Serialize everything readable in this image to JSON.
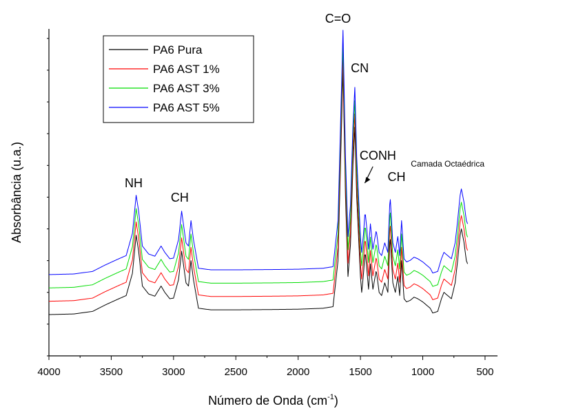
{
  "chart_data": {
    "type": "line",
    "title": "",
    "xlabel": "Número de Onda (cm",
    "xlabel_sup": "-1",
    "xlabel_suffix": ")",
    "ylabel": "Absorbância (u.a.)",
    "xlim": [
      4000,
      400
    ],
    "x_reversed": true,
    "y_ticks_labeled": false,
    "x_ticks": [
      4000,
      3500,
      3000,
      2500,
      2000,
      1500,
      1000,
      500
    ],
    "x_tick_labels": [
      "4000",
      "3500",
      "3000",
      "2500",
      "2000",
      "1500",
      "1000",
      "500"
    ],
    "grid": false,
    "legend_position": "top-left",
    "series": [
      {
        "name": "PA6 Pura",
        "color": "#000000",
        "offset": 0.0
      },
      {
        "name": "PA6 AST 1%",
        "color": "#ff0000",
        "offset": 0.042
      },
      {
        "name": "PA6 AST 3%",
        "color": "#00dd00",
        "offset": 0.084
      },
      {
        "name": "PA6 AST 5%",
        "color": "#0000ff",
        "offset": 0.126
      }
    ],
    "spectrum_shape": [
      [
        4000,
        0.13
      ],
      [
        3800,
        0.132
      ],
      [
        3650,
        0.14
      ],
      [
        3550,
        0.16
      ],
      [
        3450,
        0.178
      ],
      [
        3380,
        0.19
      ],
      [
        3330,
        0.26
      ],
      [
        3300,
        0.38
      ],
      [
        3280,
        0.33
      ],
      [
        3250,
        0.22
      ],
      [
        3200,
        0.195
      ],
      [
        3150,
        0.188
      ],
      [
        3100,
        0.22
      ],
      [
        3070,
        0.2
      ],
      [
        3030,
        0.18
      ],
      [
        3000,
        0.182
      ],
      [
        2960,
        0.24
      ],
      [
        2935,
        0.33
      ],
      [
        2900,
        0.23
      ],
      [
        2880,
        0.22
      ],
      [
        2860,
        0.3
      ],
      [
        2840,
        0.24
      ],
      [
        2800,
        0.15
      ],
      [
        2700,
        0.145
      ],
      [
        2500,
        0.145
      ],
      [
        2200,
        0.146
      ],
      [
        2000,
        0.147
      ],
      [
        1800,
        0.15
      ],
      [
        1720,
        0.155
      ],
      [
        1680,
        0.3
      ],
      [
        1660,
        0.6
      ],
      [
        1640,
        0.9
      ],
      [
        1620,
        0.5
      ],
      [
        1600,
        0.25
      ],
      [
        1580,
        0.35
      ],
      [
        1560,
        0.6
      ],
      [
        1545,
        0.72
      ],
      [
        1530,
        0.5
      ],
      [
        1500,
        0.25
      ],
      [
        1490,
        0.2
      ],
      [
        1475,
        0.26
      ],
      [
        1463,
        0.33
      ],
      [
        1450,
        0.28
      ],
      [
        1435,
        0.21
      ],
      [
        1420,
        0.29
      ],
      [
        1400,
        0.21
      ],
      [
        1373,
        0.27
      ],
      [
        1350,
        0.2
      ],
      [
        1330,
        0.19
      ],
      [
        1305,
        0.23
      ],
      [
        1280,
        0.2
      ],
      [
        1262,
        0.38
      ],
      [
        1240,
        0.23
      ],
      [
        1220,
        0.2
      ],
      [
        1200,
        0.25
      ],
      [
        1185,
        0.19
      ],
      [
        1170,
        0.3
      ],
      [
        1150,
        0.18
      ],
      [
        1130,
        0.17
      ],
      [
        1100,
        0.175
      ],
      [
        1070,
        0.185
      ],
      [
        1040,
        0.18
      ],
      [
        1000,
        0.17
      ],
      [
        970,
        0.16
      ],
      [
        940,
        0.15
      ],
      [
        920,
        0.135
      ],
      [
        880,
        0.14
      ],
      [
        850,
        0.18
      ],
      [
        830,
        0.2
      ],
      [
        800,
        0.19
      ],
      [
        770,
        0.18
      ],
      [
        740,
        0.23
      ],
      [
        720,
        0.3
      ],
      [
        700,
        0.38
      ],
      [
        690,
        0.4
      ],
      [
        670,
        0.36
      ],
      [
        650,
        0.3
      ],
      [
        640,
        0.29
      ]
    ],
    "annotations": [
      {
        "text": "C=O",
        "x": 1680,
        "size": "large"
      },
      {
        "text": "CN",
        "x": 1505,
        "size": "large"
      },
      {
        "text": "NH",
        "x": 3320,
        "size": "large"
      },
      {
        "text": "CH",
        "x": 2950,
        "size": "large"
      },
      {
        "text": "CONH",
        "x": 1360,
        "size": "large"
      },
      {
        "text": "CH",
        "x": 1210,
        "size": "large"
      },
      {
        "text": "Camada Octaédrica",
        "x": 800,
        "size": "small"
      }
    ]
  }
}
